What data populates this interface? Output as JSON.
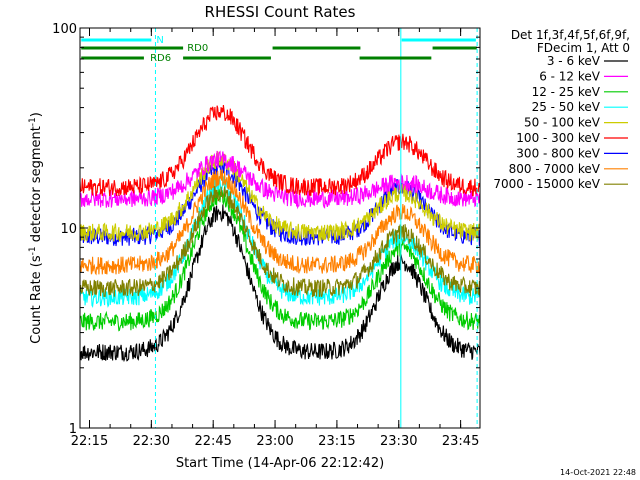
{
  "chart_data": {
    "type": "line",
    "title": "RHESSI Count Rates",
    "xlabel": "Start Time (14-Apr-06 22:12:42)",
    "ylabel_main": "Count Rate (s",
    "ylabel_sup": "-1",
    "ylabel_tail": " detector segment",
    "ylabel_sup2": "-1",
    "ylabel_close": ")",
    "y_scale": "log",
    "ylim": [
      1,
      100
    ],
    "xlim_minutes": [
      0,
      97
    ],
    "x_ticks": [
      {
        "t": 2.3,
        "label": "22:15"
      },
      {
        "t": 17.3,
        "label": "22:30"
      },
      {
        "t": 32.3,
        "label": "22:45"
      },
      {
        "t": 47.3,
        "label": "23:00"
      },
      {
        "t": 62.3,
        "label": "23:15"
      },
      {
        "t": 77.3,
        "label": "23:30"
      },
      {
        "t": 92.3,
        "label": "23:45"
      }
    ],
    "y_ticks": [
      {
        "v": 1,
        "label": "1"
      },
      {
        "v": 10,
        "label": "10"
      },
      {
        "v": 100,
        "label": "100"
      }
    ],
    "legend_header": [
      "Det 1f,3f,4f,5f,6f,9f,",
      "FDecim 1, Att 0"
    ],
    "legend_position": "right",
    "series": [
      {
        "name": "3 - 6 keV",
        "color": "#000000",
        "base": 2.4,
        "peak1": 12.0,
        "peak2": 6.8
      },
      {
        "name": "6 - 12 keV",
        "color": "#ff00ff",
        "base": 14.0,
        "peak1": 22.0,
        "peak2": 17.0
      },
      {
        "name": "12 - 25 keV",
        "color": "#00cc00",
        "base": 3.4,
        "peak1": 14.5,
        "peak2": 8.0
      },
      {
        "name": "25 - 50 keV",
        "color": "#00ffff",
        "base": 4.5,
        "peak1": 16.5,
        "peak2": 9.0
      },
      {
        "name": "50 - 100 keV",
        "color": "#cccc00",
        "base": 9.5,
        "peak1": 22.0,
        "peak2": 15.0
      },
      {
        "name": "100 - 300 keV",
        "color": "#ff0000",
        "base": 16.0,
        "peak1": 38.0,
        "peak2": 27.0
      },
      {
        "name": "300 - 800 keV",
        "color": "#0000ff",
        "base": 9.0,
        "peak1": 20.0,
        "peak2": 16.0
      },
      {
        "name": "800 - 7000 keV",
        "color": "#ff8000",
        "base": 6.5,
        "peak1": 18.0,
        "peak2": 12.0
      },
      {
        "name": "7000 - 15000 keV",
        "color": "#808000",
        "base": 5.0,
        "peak1": 15.0,
        "peak2": 9.5
      }
    ],
    "peaks_minutes": {
      "first": 34.0,
      "first_width": 9.0,
      "second": 78.0,
      "second_width": 8.0
    },
    "night_lines_minutes": [
      0.0,
      18.3,
      77.8,
      96.3
    ],
    "night_line_color": "#00ffff",
    "night_bar_label": "N",
    "night_bars": [
      {
        "from": 0.3,
        "to": 17.3,
        "level": 1
      },
      {
        "from": 78.0,
        "to": 96.0,
        "level": 1
      }
    ],
    "rd_labels": [
      "RD0",
      "RD6"
    ],
    "rd_bars": [
      {
        "label": "RD0",
        "from": 0.3,
        "to": 25.0,
        "level": 2,
        "label_at": 26.0
      },
      {
        "label": "",
        "from": 46.7,
        "to": 68.0,
        "level": 2
      },
      {
        "label": "",
        "from": 85.5,
        "to": 96.2,
        "level": 2
      },
      {
        "label": "RD6",
        "from": 0.3,
        "to": 15.5,
        "level": 3,
        "label_at": 17.0
      },
      {
        "label": "",
        "from": 25.0,
        "to": 46.3,
        "level": 3
      },
      {
        "label": "",
        "from": 67.8,
        "to": 85.2,
        "level": 3
      }
    ],
    "rd_color": "#008000",
    "footer_timestamp": "14-Oct-2021 22:48",
    "grid": false
  }
}
